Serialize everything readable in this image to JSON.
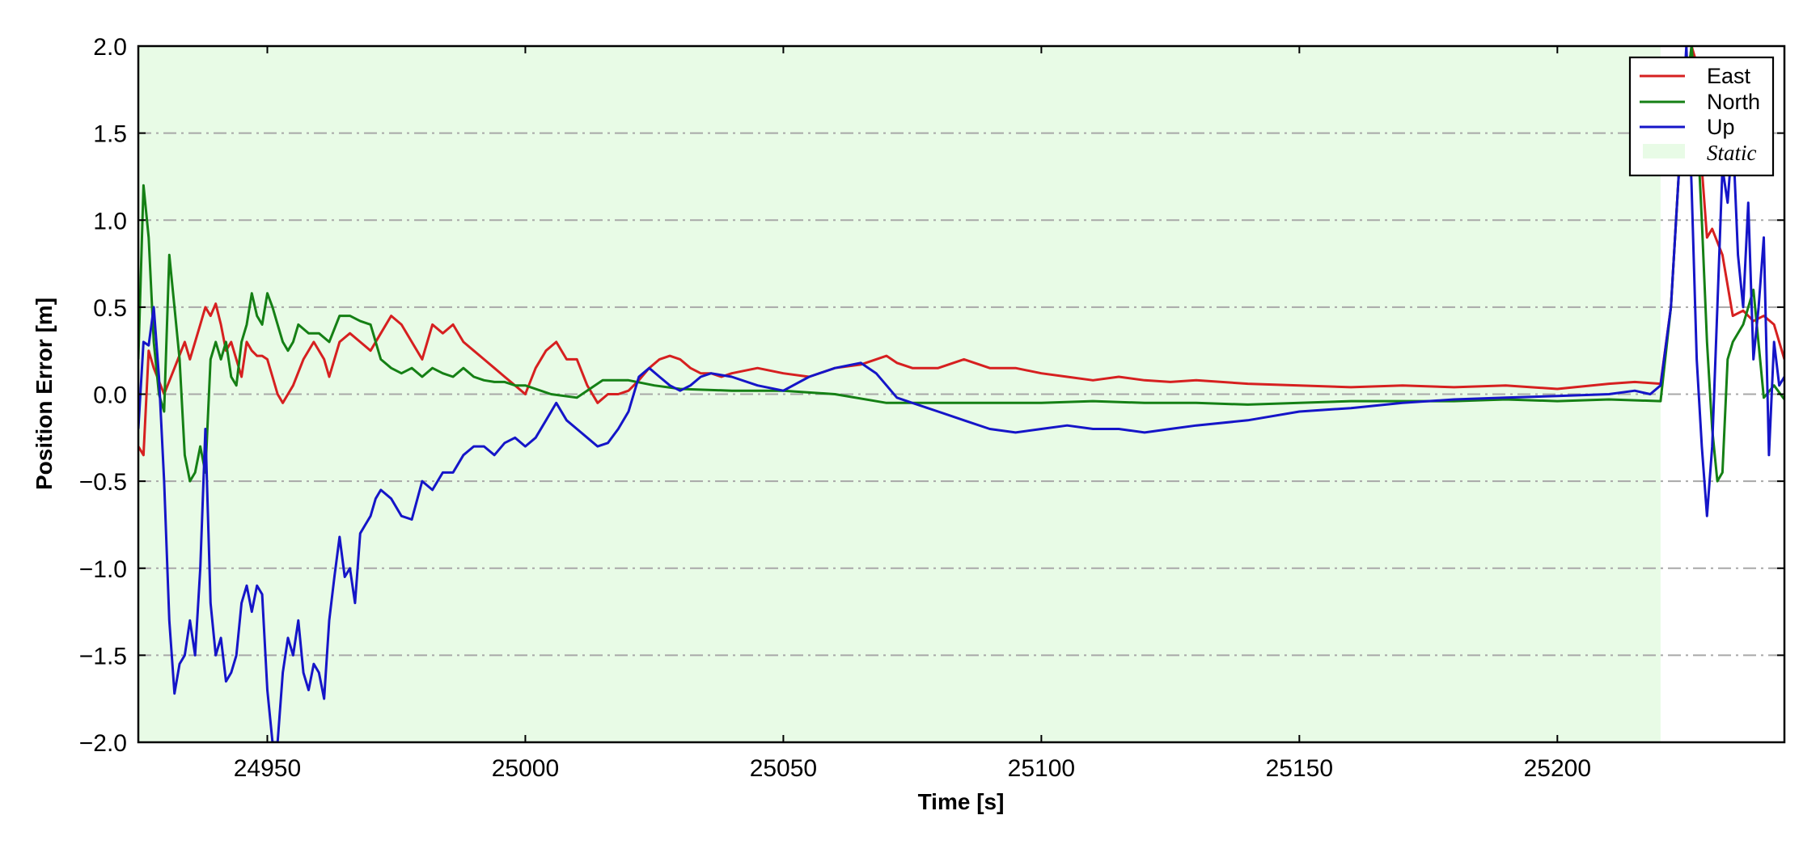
{
  "chart_data": {
    "type": "line",
    "xlabel": "Time [s]",
    "ylabel": "Position Error [m]",
    "xlim": [
      24925,
      25244
    ],
    "ylim": [
      -2.0,
      2.0
    ],
    "xticks": [
      24950,
      25000,
      25050,
      25100,
      25150,
      25200
    ],
    "xtick_labels": [
      "24950",
      "25000",
      "25050",
      "25100",
      "25150",
      "25200"
    ],
    "yticks": [
      2.0,
      1.5,
      1.0,
      0.5,
      0.0,
      -0.5,
      -1.0,
      -1.5,
      -2.0
    ],
    "ytick_labels": [
      "2.0",
      "1.5",
      "1.0",
      "0.5",
      "0.0",
      "−0.5",
      "−1.0",
      "−1.5",
      "−2.0"
    ],
    "grid": "horizontal dash-dot",
    "legend_position": "top-right",
    "shaded_region": {
      "label": "Static",
      "x_start": 24925,
      "x_end": 25220,
      "color": "#e8fbe6"
    },
    "series": [
      {
        "name": "East",
        "color": "#d62020",
        "x": [
          24925,
          24926,
          24927,
          24928,
          24930,
          24932,
          24934,
          24935,
          24937,
          24938,
          24939,
          24940,
          24941,
          24942,
          24943,
          24944,
          24945,
          24946,
          24947,
          24948,
          24949,
          24950,
          24951,
          24952,
          24953,
          24954,
          24955,
          24957,
          24959,
          24961,
          24962,
          24964,
          24966,
          24968,
          24970,
          24972,
          24974,
          24976,
          24978,
          24980,
          24982,
          24984,
          24986,
          24988,
          24990,
          24992,
          24994,
          24996,
          24998,
          25000,
          25002,
          25004,
          25006,
          25008,
          25010,
          25012,
          25014,
          25016,
          25018,
          25020,
          25022,
          25024,
          25026,
          25028,
          25030,
          25032,
          25034,
          25036,
          25038,
          25040,
          25045,
          25050,
          25055,
          25060,
          25065,
          25068,
          25070,
          25072,
          25075,
          25080,
          25085,
          25090,
          25095,
          25100,
          25105,
          25110,
          25115,
          25120,
          25125,
          25130,
          25140,
          25150,
          25160,
          25170,
          25180,
          25190,
          25200,
          25210,
          25215,
          25220,
          25222,
          25224,
          25226,
          25227,
          25228,
          25229,
          25230,
          25232,
          25234,
          25236,
          25238,
          25240,
          25242,
          25244
        ],
        "y": [
          -0.3,
          -0.35,
          0.25,
          0.15,
          0.0,
          0.15,
          0.3,
          0.2,
          0.4,
          0.5,
          0.45,
          0.52,
          0.4,
          0.25,
          0.3,
          0.2,
          0.1,
          0.3,
          0.25,
          0.22,
          0.22,
          0.2,
          0.1,
          0.0,
          -0.05,
          0.0,
          0.05,
          0.2,
          0.3,
          0.2,
          0.1,
          0.3,
          0.35,
          0.3,
          0.25,
          0.35,
          0.45,
          0.4,
          0.3,
          0.2,
          0.4,
          0.35,
          0.4,
          0.3,
          0.25,
          0.2,
          0.15,
          0.1,
          0.05,
          0.0,
          0.15,
          0.25,
          0.3,
          0.2,
          0.2,
          0.05,
          -0.05,
          0.0,
          0.0,
          0.02,
          0.08,
          0.15,
          0.2,
          0.22,
          0.2,
          0.15,
          0.12,
          0.12,
          0.1,
          0.12,
          0.15,
          0.12,
          0.1,
          0.15,
          0.17,
          0.2,
          0.22,
          0.18,
          0.15,
          0.15,
          0.2,
          0.15,
          0.15,
          0.12,
          0.1,
          0.08,
          0.1,
          0.08,
          0.07,
          0.08,
          0.06,
          0.05,
          0.04,
          0.05,
          0.04,
          0.05,
          0.03,
          0.06,
          0.07,
          0.06,
          0.5,
          1.5,
          2.0,
          1.9,
          1.3,
          0.9,
          0.95,
          0.8,
          0.45,
          0.48,
          0.42,
          0.45,
          0.4,
          0.2
        ]
      },
      {
        "name": "North",
        "color": "#158015",
        "x": [
          24925,
          24926,
          24927,
          24928,
          24929,
          24930,
          24931,
          24932,
          24933,
          24934,
          24935,
          24936,
          24937,
          24938,
          24939,
          24940,
          24941,
          24942,
          24943,
          24944,
          24945,
          24946,
          24947,
          24948,
          24949,
          24950,
          24951,
          24952,
          24953,
          24954,
          24955,
          24956,
          24958,
          24960,
          24962,
          24964,
          24966,
          24968,
          24970,
          24972,
          24974,
          24976,
          24978,
          24980,
          24982,
          24984,
          24986,
          24988,
          24990,
          24992,
          24994,
          24996,
          24998,
          25000,
          25005,
          25010,
          25015,
          25020,
          25025,
          25030,
          25040,
          25050,
          25060,
          25070,
          25080,
          25090,
          25100,
          25110,
          25120,
          25130,
          25140,
          25150,
          25160,
          25170,
          25180,
          25190,
          25200,
          25210,
          25220,
          25222,
          25224,
          25226,
          25227,
          25228,
          25229,
          25230,
          25231,
          25232,
          25233,
          25234,
          25236,
          25238,
          25240,
          25242,
          25244
        ],
        "y": [
          0.2,
          1.2,
          0.9,
          0.3,
          0.0,
          -0.1,
          0.8,
          0.5,
          0.2,
          -0.35,
          -0.5,
          -0.45,
          -0.3,
          -0.45,
          0.2,
          0.3,
          0.2,
          0.3,
          0.1,
          0.05,
          0.3,
          0.4,
          0.58,
          0.45,
          0.4,
          0.58,
          0.5,
          0.4,
          0.3,
          0.25,
          0.3,
          0.4,
          0.35,
          0.35,
          0.3,
          0.45,
          0.45,
          0.42,
          0.4,
          0.2,
          0.15,
          0.12,
          0.15,
          0.1,
          0.15,
          0.12,
          0.1,
          0.15,
          0.1,
          0.08,
          0.07,
          0.07,
          0.05,
          0.05,
          0.0,
          -0.02,
          0.08,
          0.08,
          0.05,
          0.03,
          0.02,
          0.02,
          0.0,
          -0.05,
          -0.05,
          -0.05,
          -0.05,
          -0.04,
          -0.05,
          -0.05,
          -0.06,
          -0.05,
          -0.04,
          -0.04,
          -0.04,
          -0.03,
          -0.04,
          -0.03,
          -0.04,
          0.5,
          1.5,
          2.0,
          1.6,
          1.0,
          0.3,
          -0.2,
          -0.5,
          -0.45,
          0.2,
          0.3,
          0.4,
          0.6,
          -0.02,
          0.05,
          -0.03
        ]
      },
      {
        "name": "Up",
        "color": "#1515c8",
        "x": [
          24925,
          24926,
          24927,
          24928,
          24929,
          24930,
          24931,
          24932,
          24933,
          24934,
          24935,
          24936,
          24937,
          24938,
          24939,
          24940,
          24941,
          24942,
          24943,
          24944,
          24945,
          24946,
          24947,
          24948,
          24949,
          24950,
          24951,
          24952,
          24953,
          24954,
          24955,
          24956,
          24957,
          24958,
          24959,
          24960,
          24961,
          24962,
          24963,
          24964,
          24965,
          24966,
          24967,
          24968,
          24969,
          24970,
          24971,
          24972,
          24974,
          24976,
          24978,
          24980,
          24982,
          24984,
          24986,
          24988,
          24990,
          24992,
          24994,
          24996,
          24998,
          25000,
          25002,
          25004,
          25006,
          25008,
          25010,
          25012,
          25014,
          25016,
          25018,
          25020,
          25022,
          25024,
          25026,
          25028,
          25030,
          25032,
          25034,
          25036,
          25040,
          25045,
          25050,
          25055,
          25060,
          25065,
          25068,
          25070,
          25072,
          25075,
          25080,
          25085,
          25090,
          25095,
          25100,
          25105,
          25110,
          25115,
          25120,
          25125,
          25130,
          25140,
          25150,
          25160,
          25170,
          25180,
          25190,
          25200,
          25210,
          25215,
          25218,
          25220,
          25222,
          25224,
          25225,
          25226,
          25227,
          25228,
          25229,
          25230,
          25231,
          25232,
          25233,
          25234,
          25235,
          25236,
          25237,
          25238,
          25239,
          25240,
          25241,
          25242,
          25243,
          25244
        ],
        "y": [
          -0.2,
          0.3,
          0.28,
          0.5,
          0.1,
          -0.5,
          -1.3,
          -1.72,
          -1.55,
          -1.5,
          -1.3,
          -1.5,
          -1.0,
          -0.2,
          -1.2,
          -1.5,
          -1.4,
          -1.65,
          -1.6,
          -1.5,
          -1.2,
          -1.1,
          -1.25,
          -1.1,
          -1.15,
          -1.7,
          -2.0,
          -2.0,
          -1.6,
          -1.4,
          -1.5,
          -1.3,
          -1.6,
          -1.7,
          -1.55,
          -1.6,
          -1.75,
          -1.3,
          -1.05,
          -0.82,
          -1.05,
          -1.0,
          -1.2,
          -0.8,
          -0.75,
          -0.7,
          -0.6,
          -0.55,
          -0.6,
          -0.7,
          -0.72,
          -0.5,
          -0.55,
          -0.45,
          -0.45,
          -0.35,
          -0.3,
          -0.3,
          -0.35,
          -0.28,
          -0.25,
          -0.3,
          -0.25,
          -0.15,
          -0.05,
          -0.15,
          -0.2,
          -0.25,
          -0.3,
          -0.28,
          -0.2,
          -0.1,
          0.1,
          0.15,
          0.1,
          0.05,
          0.02,
          0.05,
          0.1,
          0.12,
          0.1,
          0.05,
          0.02,
          0.1,
          0.15,
          0.18,
          0.12,
          0.05,
          -0.02,
          -0.05,
          -0.1,
          -0.15,
          -0.2,
          -0.22,
          -0.2,
          -0.18,
          -0.2,
          -0.2,
          -0.22,
          -0.2,
          -0.18,
          -0.15,
          -0.1,
          -0.08,
          -0.05,
          -0.03,
          -0.02,
          -0.01,
          0.0,
          0.02,
          0.0,
          0.05,
          0.5,
          1.5,
          2.0,
          1.2,
          0.2,
          -0.3,
          -0.7,
          -0.3,
          0.5,
          1.3,
          1.1,
          1.5,
          0.8,
          0.5,
          1.1,
          0.2,
          0.5,
          0.9,
          -0.35,
          0.3,
          0.05,
          0.1
        ]
      }
    ]
  }
}
